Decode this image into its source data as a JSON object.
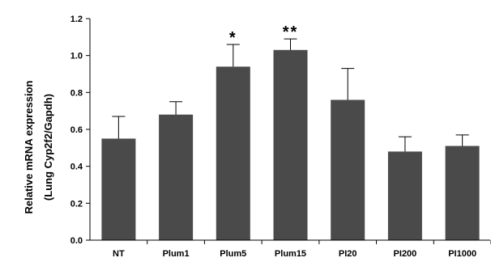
{
  "chart_data": {
    "type": "bar",
    "title": "",
    "xlabel": "",
    "ylabel_lines": [
      "Relative mRNA expression",
      "(Lung Cyp2f2/Gapdh)"
    ],
    "categories": [
      "NT",
      "Plum1",
      "Plum5",
      "Plum15",
      "PI20",
      "PI200",
      "PI1000"
    ],
    "values": [
      0.55,
      0.68,
      0.94,
      1.03,
      0.76,
      0.48,
      0.51
    ],
    "errors": [
      0.12,
      0.07,
      0.12,
      0.06,
      0.17,
      0.08,
      0.06
    ],
    "annotations": [
      "",
      "",
      "*",
      "**",
      "",
      "",
      ""
    ],
    "yticks": [
      "0.0",
      "0.2",
      "0.4",
      "0.6",
      "0.8",
      "1.0",
      "1.2"
    ],
    "ylim": [
      0,
      1.2
    ],
    "grid": false,
    "legend": "none",
    "bar_color": "#4a4a4a",
    "axis_color": "#000000"
  }
}
